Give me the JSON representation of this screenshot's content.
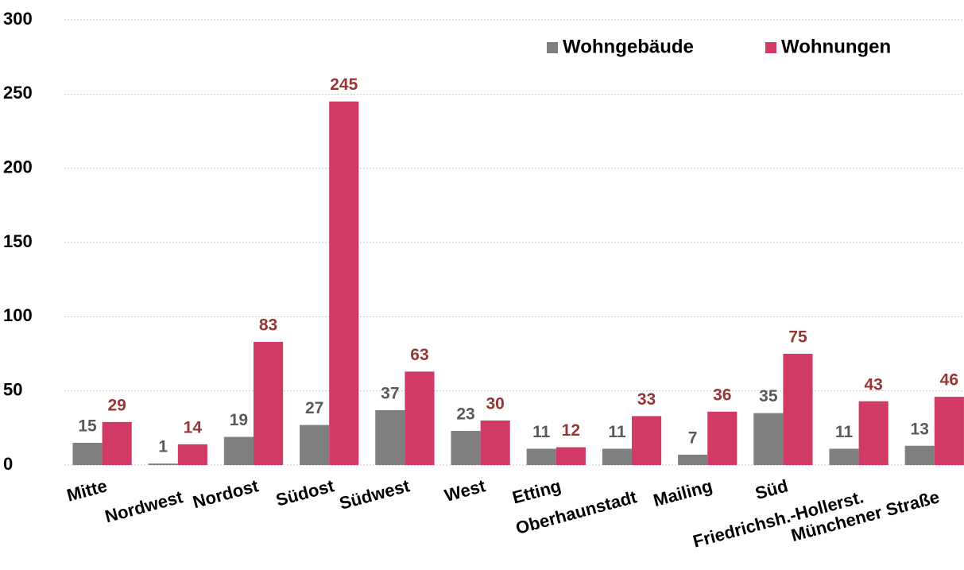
{
  "chart_data": {
    "type": "bar",
    "categories": [
      "Mitte",
      "Nordwest",
      "Nordost",
      "Südost",
      "Südwest",
      "West",
      "Etting",
      "Oberhaunstadt",
      "Mailing",
      "Süd",
      "Friedrichsh.-Hollerst.",
      "Münchener Straße"
    ],
    "series": [
      {
        "name": "Wohngebäude",
        "color": "#7f7f7f",
        "label_color": "#595959",
        "values": [
          15,
          1,
          19,
          27,
          37,
          23,
          11,
          11,
          7,
          35,
          11,
          13
        ]
      },
      {
        "name": "Wohnungen",
        "color": "#d03a64",
        "label_color": "#953735",
        "values": [
          29,
          14,
          83,
          245,
          63,
          30,
          12,
          33,
          36,
          75,
          43,
          46
        ]
      }
    ],
    "ylim": [
      0,
      300
    ],
    "yticks": [
      0,
      50,
      100,
      150,
      200,
      250,
      300
    ],
    "grid": true,
    "legend": "top-right"
  }
}
